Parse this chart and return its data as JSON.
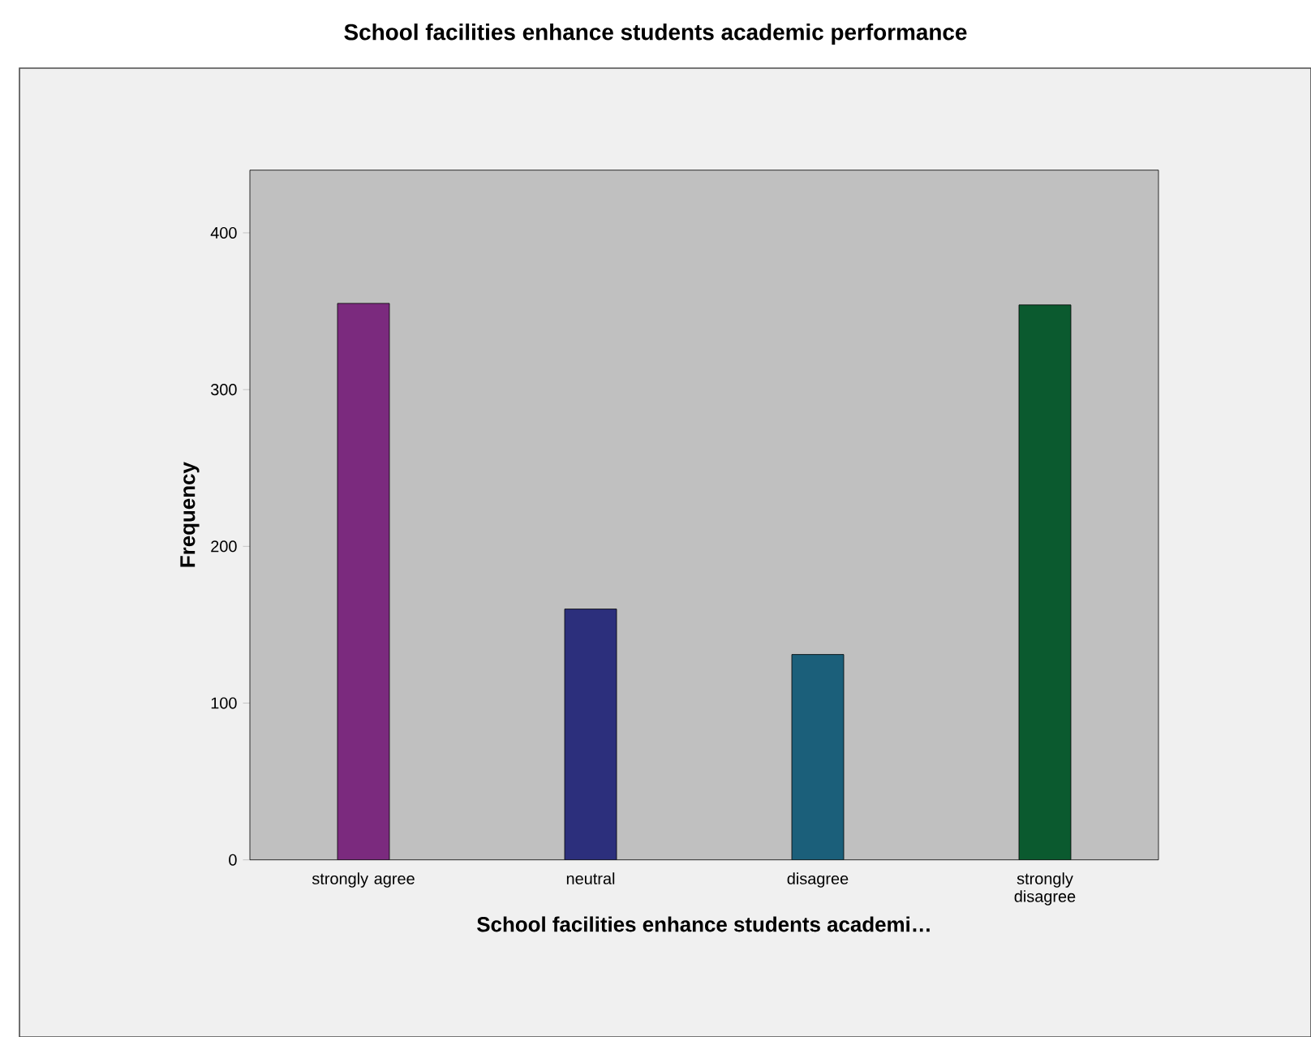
{
  "chart_data": {
    "type": "bar",
    "title": "School facilities enhance students academic performance",
    "xlabel": "School facilities enhance students academi…",
    "ylabel": "Frequency",
    "categories": [
      "strongly agree",
      "neutral",
      "disagree",
      "strongly disagree"
    ],
    "values": [
      355,
      160,
      131,
      354
    ],
    "colors": [
      "#7b2a7e",
      "#2c2f7c",
      "#1b5f7a",
      "#0b5a2f"
    ],
    "ylim": [
      0,
      440
    ],
    "yticks": [
      0,
      100,
      200,
      300,
      400
    ]
  }
}
